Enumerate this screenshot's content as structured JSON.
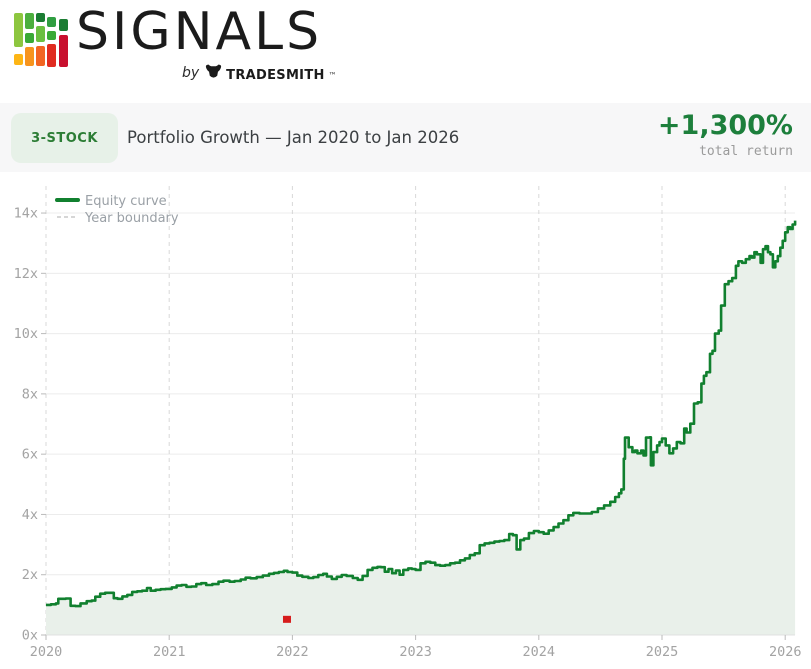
{
  "logo": {
    "brand": "SIGNALS",
    "byline_prefix": "by",
    "byline_brand": "TradeSmith",
    "trademark": "™",
    "icons": {
      "logo_icon": "bar-chart-grid",
      "byline_icon": "bull-head"
    },
    "icon_colors": [
      "#8dc63f",
      "#39a935",
      "#1b7d33",
      "#f7941d",
      "#fdb515",
      "#f26522",
      "#e02b20",
      "#c8102e"
    ]
  },
  "summary": {
    "badge": "3-STOCK",
    "title": "Portfolio Growth — Jan 2020 to Jan 2026",
    "return_value": "+1,300%",
    "return_label": "total return"
  },
  "colors": {
    "accent_green": "#1d7f3c",
    "badge_bg": "#e7f1e8",
    "badge_text": "#2c7d35",
    "band_bg": "#f7f7f8",
    "line_green": "#11802f",
    "fill_green": "#e9f0ea",
    "grid_gray": "#ececec",
    "year_dash_gray": "#d8d8d8",
    "axis_text_gray": "#a3a3a3",
    "marker_red": "#d61c1c"
  },
  "chart_data": {
    "type": "area",
    "title": "Portfolio Growth — Jan 2020 to Jan 2026",
    "xlabel": "",
    "ylabel": "",
    "xlim": [
      2020,
      2026.09
    ],
    "ylim": [
      0,
      14
    ],
    "xticks": [
      2020,
      2021,
      2022,
      2023,
      2024,
      2025,
      2026
    ],
    "yticks": [
      0,
      2,
      4,
      6,
      8,
      10,
      12,
      14
    ],
    "ytick_suffix": "x",
    "grid": true,
    "legend_position": "top-left",
    "legend": [
      {
        "label": "Equity curve",
        "style": "solid",
        "color": "#11802f"
      },
      {
        "label": "Year boundary",
        "style": "dashed",
        "color": "#c9c9c9"
      }
    ],
    "series": [
      {
        "name": "Equity curve",
        "color": "#11802f",
        "fill": "#e9f0ea",
        "interpolation": "step-after",
        "points": [
          [
            2020.0,
            1.0
          ],
          [
            2020.04,
            1.02
          ],
          [
            2020.08,
            1.05
          ],
          [
            2020.1,
            1.2
          ],
          [
            2020.16,
            1.21
          ],
          [
            2020.2,
            0.97
          ],
          [
            2020.24,
            0.96
          ],
          [
            2020.28,
            1.05
          ],
          [
            2020.33,
            1.12
          ],
          [
            2020.37,
            1.14
          ],
          [
            2020.4,
            1.27
          ],
          [
            2020.44,
            1.37
          ],
          [
            2020.48,
            1.4
          ],
          [
            2020.53,
            1.4
          ],
          [
            2020.55,
            1.22
          ],
          [
            2020.58,
            1.2
          ],
          [
            2020.62,
            1.28
          ],
          [
            2020.66,
            1.33
          ],
          [
            2020.7,
            1.43
          ],
          [
            2020.74,
            1.45
          ],
          [
            2020.78,
            1.47
          ],
          [
            2020.82,
            1.56
          ],
          [
            2020.85,
            1.47
          ],
          [
            2020.89,
            1.5
          ],
          [
            2020.93,
            1.52
          ],
          [
            2020.97,
            1.53
          ],
          [
            2021.02,
            1.58
          ],
          [
            2021.06,
            1.64
          ],
          [
            2021.1,
            1.66
          ],
          [
            2021.14,
            1.6
          ],
          [
            2021.18,
            1.61
          ],
          [
            2021.22,
            1.69
          ],
          [
            2021.26,
            1.72
          ],
          [
            2021.3,
            1.66
          ],
          [
            2021.35,
            1.69
          ],
          [
            2021.4,
            1.77
          ],
          [
            2021.44,
            1.8
          ],
          [
            2021.49,
            1.77
          ],
          [
            2021.53,
            1.79
          ],
          [
            2021.58,
            1.84
          ],
          [
            2021.62,
            1.9
          ],
          [
            2021.66,
            1.88
          ],
          [
            2021.71,
            1.92
          ],
          [
            2021.76,
            1.97
          ],
          [
            2021.81,
            2.03
          ],
          [
            2021.85,
            2.06
          ],
          [
            2021.89,
            2.09
          ],
          [
            2021.93,
            2.13
          ],
          [
            2021.96,
            2.09
          ],
          [
            2022.0,
            2.07
          ],
          [
            2022.04,
            1.97
          ],
          [
            2022.08,
            1.93
          ],
          [
            2022.13,
            1.89
          ],
          [
            2022.17,
            1.92
          ],
          [
            2022.21,
            1.99
          ],
          [
            2022.25,
            2.03
          ],
          [
            2022.28,
            1.94
          ],
          [
            2022.32,
            1.86
          ],
          [
            2022.36,
            1.93
          ],
          [
            2022.4,
            1.99
          ],
          [
            2022.44,
            1.96
          ],
          [
            2022.49,
            1.89
          ],
          [
            2022.53,
            1.83
          ],
          [
            2022.57,
            1.96
          ],
          [
            2022.61,
            2.16
          ],
          [
            2022.65,
            2.23
          ],
          [
            2022.69,
            2.26
          ],
          [
            2022.72,
            2.25
          ],
          [
            2022.75,
            2.1
          ],
          [
            2022.78,
            2.19
          ],
          [
            2022.81,
            2.05
          ],
          [
            2022.84,
            2.14
          ],
          [
            2022.87,
            2.0
          ],
          [
            2022.9,
            2.16
          ],
          [
            2022.94,
            2.21
          ],
          [
            2022.97,
            2.19
          ],
          [
            2023.0,
            2.16
          ],
          [
            2023.04,
            2.38
          ],
          [
            2023.08,
            2.43
          ],
          [
            2023.12,
            2.4
          ],
          [
            2023.16,
            2.32
          ],
          [
            2023.2,
            2.3
          ],
          [
            2023.24,
            2.32
          ],
          [
            2023.28,
            2.38
          ],
          [
            2023.32,
            2.4
          ],
          [
            2023.36,
            2.48
          ],
          [
            2023.4,
            2.54
          ],
          [
            2023.44,
            2.65
          ],
          [
            2023.48,
            2.71
          ],
          [
            2023.52,
            2.98
          ],
          [
            2023.56,
            3.04
          ],
          [
            2023.6,
            3.06
          ],
          [
            2023.64,
            3.1
          ],
          [
            2023.68,
            3.12
          ],
          [
            2023.72,
            3.15
          ],
          [
            2023.76,
            3.35
          ],
          [
            2023.79,
            3.31
          ],
          [
            2023.82,
            2.84
          ],
          [
            2023.85,
            3.15
          ],
          [
            2023.88,
            3.2
          ],
          [
            2023.92,
            3.38
          ],
          [
            2023.96,
            3.45
          ],
          [
            2024.0,
            3.41
          ],
          [
            2024.04,
            3.36
          ],
          [
            2024.08,
            3.47
          ],
          [
            2024.12,
            3.58
          ],
          [
            2024.16,
            3.7
          ],
          [
            2024.2,
            3.81
          ],
          [
            2024.24,
            3.97
          ],
          [
            2024.28,
            4.05
          ],
          [
            2024.33,
            4.03
          ],
          [
            2024.38,
            4.03
          ],
          [
            2024.43,
            4.08
          ],
          [
            2024.48,
            4.2
          ],
          [
            2024.53,
            4.3
          ],
          [
            2024.58,
            4.42
          ],
          [
            2024.62,
            4.58
          ],
          [
            2024.65,
            4.7
          ],
          [
            2024.67,
            4.83
          ],
          [
            2024.69,
            5.85
          ],
          [
            2024.7,
            6.55
          ],
          [
            2024.73,
            6.23
          ],
          [
            2024.76,
            6.07
          ],
          [
            2024.78,
            6.12
          ],
          [
            2024.8,
            6.03
          ],
          [
            2024.83,
            6.12
          ],
          [
            2024.85,
            5.96
          ],
          [
            2024.87,
            6.55
          ],
          [
            2024.9,
            6.56
          ],
          [
            2024.91,
            5.63
          ],
          [
            2024.93,
            6.07
          ],
          [
            2024.96,
            6.29
          ],
          [
            2024.98,
            6.4
          ],
          [
            2025.0,
            6.52
          ],
          [
            2025.03,
            6.29
          ],
          [
            2025.06,
            6.03
          ],
          [
            2025.09,
            6.19
          ],
          [
            2025.12,
            6.4
          ],
          [
            2025.15,
            6.36
          ],
          [
            2025.18,
            6.85
          ],
          [
            2025.2,
            6.72
          ],
          [
            2025.23,
            7.01
          ],
          [
            2025.26,
            7.68
          ],
          [
            2025.29,
            7.72
          ],
          [
            2025.32,
            8.34
          ],
          [
            2025.34,
            8.6
          ],
          [
            2025.36,
            8.72
          ],
          [
            2025.39,
            9.33
          ],
          [
            2025.41,
            9.43
          ],
          [
            2025.43,
            10.0
          ],
          [
            2025.46,
            10.1
          ],
          [
            2025.48,
            10.93
          ],
          [
            2025.51,
            11.64
          ],
          [
            2025.54,
            11.74
          ],
          [
            2025.57,
            11.84
          ],
          [
            2025.6,
            12.25
          ],
          [
            2025.62,
            12.4
          ],
          [
            2025.65,
            12.35
          ],
          [
            2025.68,
            12.47
          ],
          [
            2025.71,
            12.57
          ],
          [
            2025.73,
            12.52
          ],
          [
            2025.75,
            12.7
          ],
          [
            2025.77,
            12.63
          ],
          [
            2025.8,
            12.35
          ],
          [
            2025.82,
            12.8
          ],
          [
            2025.84,
            12.9
          ],
          [
            2025.86,
            12.7
          ],
          [
            2025.88,
            12.63
          ],
          [
            2025.9,
            12.2
          ],
          [
            2025.92,
            12.4
          ],
          [
            2025.94,
            12.57
          ],
          [
            2025.96,
            12.85
          ],
          [
            2025.98,
            13.08
          ],
          [
            2026.0,
            13.36
          ],
          [
            2026.02,
            13.53
          ],
          [
            2026.04,
            13.47
          ],
          [
            2026.06,
            13.62
          ],
          [
            2026.08,
            13.75
          ]
        ]
      }
    ],
    "marker": {
      "x": 2021.956,
      "y": 0.52,
      "color": "#d61c1c",
      "shape": "square"
    }
  }
}
